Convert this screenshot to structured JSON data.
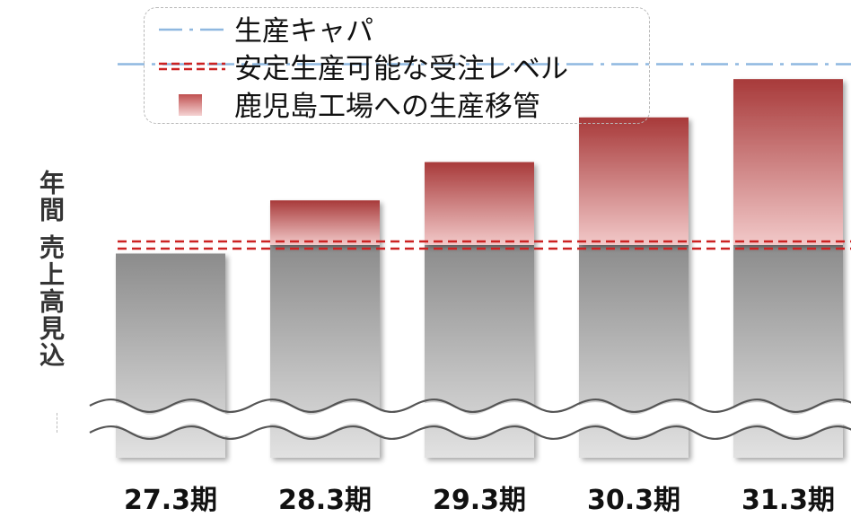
{
  "chart_data": {
    "type": "bar",
    "title": "",
    "ylabel": "年間 売上高見込",
    "categories": [
      "27.3期",
      "28.3期",
      "29.3期",
      "30.3期",
      "31.3期"
    ],
    "base_level": 100,
    "values": [
      96,
      121,
      139,
      160,
      178
    ],
    "series": [
      {
        "name": "鹿児島工場への生産移管",
        "values": [
          0,
          21,
          39,
          60,
          78
        ]
      }
    ],
    "reference_lines": [
      {
        "name": "生産キャパ",
        "value": 185,
        "style": "dash-dot",
        "color": "#8fb8e0"
      },
      {
        "name": "安定生産可能な受注レベル",
        "value": 100,
        "style": "double-dashed",
        "color": "#cc2222"
      }
    ],
    "ylim": [
      0,
      200
    ],
    "axis_break": true,
    "legend_position": "top"
  },
  "colors": {
    "bar_base_top": "#8c8c8c",
    "bar_base_bottom": "#e2e2e2",
    "bar_transfer_top": "#a83a3a",
    "bar_transfer_bottom": "#f2c9c9",
    "capacity_line": "#8fb8e0",
    "stable_line": "#cc2222"
  }
}
